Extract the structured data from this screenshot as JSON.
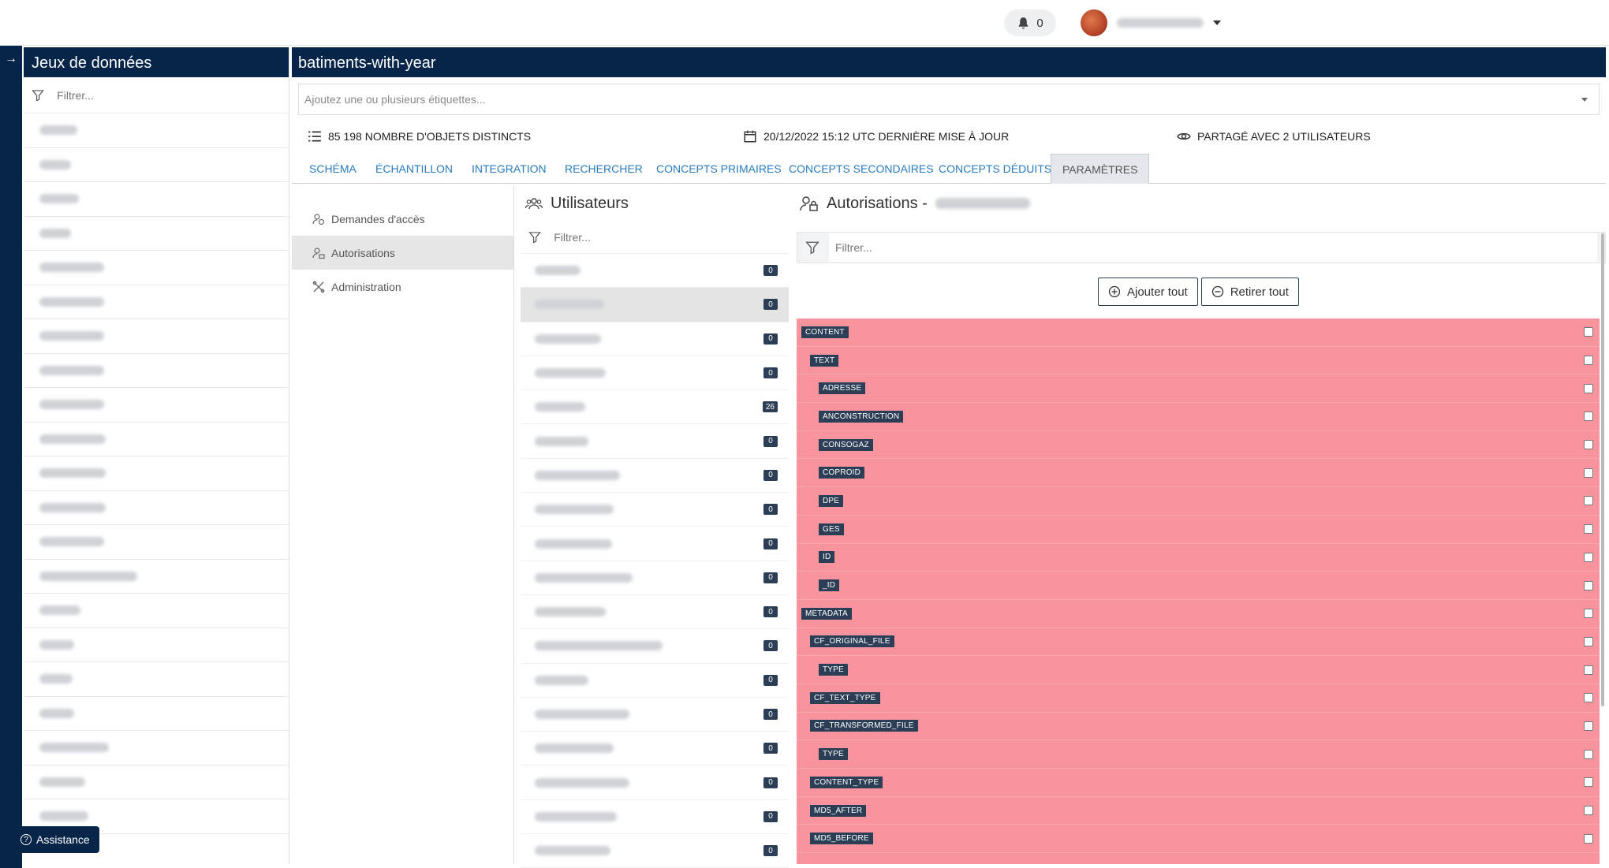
{
  "topbar": {
    "notification_count": "0"
  },
  "assistance": {
    "label": "Assistance"
  },
  "datasets_panel": {
    "title": "Jeux de données",
    "filter_placeholder": "Filtrer...",
    "items": [
      "",
      "",
      "",
      "",
      "",
      "",
      "",
      "",
      "",
      "",
      "",
      "",
      "",
      "",
      "",
      "",
      "",
      "",
      "",
      "",
      ""
    ]
  },
  "main": {
    "title": "batiments-with-year",
    "tags_placeholder": "Ajoutez une ou plusieurs étiquettes...",
    "stats": {
      "objects": "85 198 NOMBRE D'OBJETS DISTINCTS",
      "updated": "20/12/2022 15:12 UTC DERNIÈRE MISE À JOUR",
      "shared": "PARTAGÉ AVEC 2 UTILISATEURS"
    },
    "tabs": [
      "SCHÉMA",
      "ÉCHANTILLON",
      "INTEGRATION",
      "RECHERCHER",
      "CONCEPTS PRIMAIRES",
      "CONCEPTS SECONDAIRES",
      "CONCEPTS DÉDUITS",
      "PARAMÈTRES"
    ],
    "active_tab": "PARAMÈTRES"
  },
  "subnav": {
    "items": [
      "Demandes d'accès",
      "Autorisations",
      "Administration"
    ],
    "active": "Autorisations"
  },
  "users": {
    "title": "Utilisateurs",
    "filter_placeholder": "Filtrer...",
    "counts": [
      "0",
      "0",
      "0",
      "0",
      "26",
      "0",
      "0",
      "0",
      "0",
      "0",
      "0",
      "0",
      "0",
      "0",
      "0",
      "0",
      "0",
      "0"
    ]
  },
  "authorizations": {
    "title": "Autorisations -",
    "filter_placeholder": "Filtrer...",
    "add_all": "Ajouter tout",
    "remove_all": "Retirer tout",
    "fields": [
      {
        "name": "CONTENT",
        "level": 0
      },
      {
        "name": "TEXT",
        "level": 1
      },
      {
        "name": "ADRESSE",
        "level": 2
      },
      {
        "name": "ANCONSTRUCTION",
        "level": 2
      },
      {
        "name": "CONSOGAZ",
        "level": 2
      },
      {
        "name": "COPROID",
        "level": 2
      },
      {
        "name": "DPE",
        "level": 2
      },
      {
        "name": "GES",
        "level": 2
      },
      {
        "name": "ID",
        "level": 2
      },
      {
        "name": "_ID",
        "level": 2
      },
      {
        "name": "METADATA",
        "level": 0
      },
      {
        "name": "CF_ORIGINAL_FILE",
        "level": 1
      },
      {
        "name": "TYPE",
        "level": 2
      },
      {
        "name": "CF_TEXT_TYPE",
        "level": 1
      },
      {
        "name": "CF_TRANSFORMED_FILE",
        "level": 1
      },
      {
        "name": "TYPE",
        "level": 2
      },
      {
        "name": "CONTENT_TYPE",
        "level": 1
      },
      {
        "name": "MD5_AFTER",
        "level": 1
      },
      {
        "name": "MD5_BEFORE",
        "level": 1
      }
    ]
  }
}
